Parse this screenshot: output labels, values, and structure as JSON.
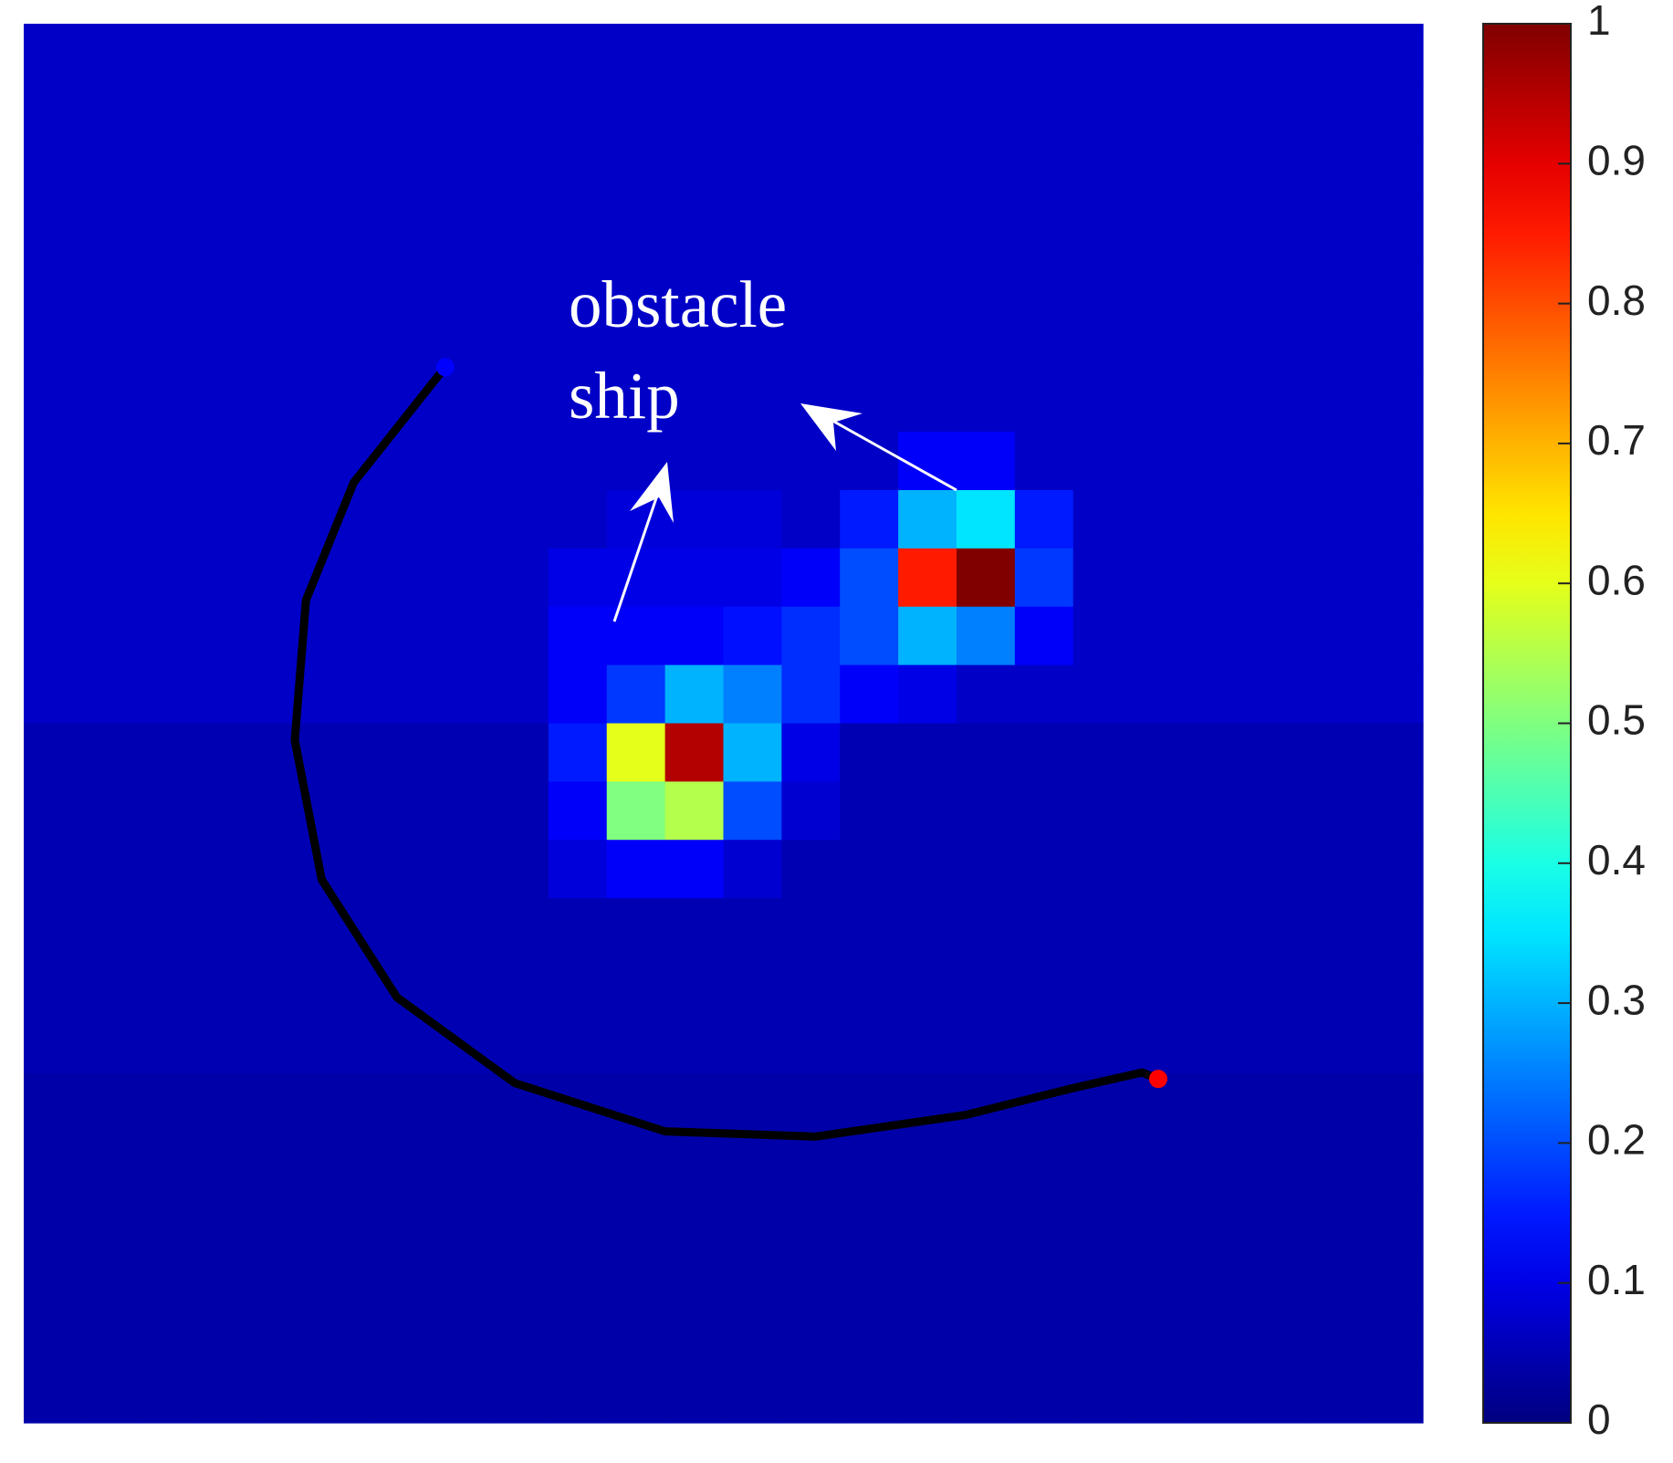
{
  "chart_data": {
    "type": "heatmap",
    "colormap": "jet",
    "clim": [
      0,
      1
    ],
    "cticks": [
      0,
      0.1,
      0.2,
      0.3,
      0.4,
      0.5,
      0.6,
      0.7,
      0.8,
      0.9,
      1
    ],
    "annotation": [
      "obstacle",
      "ship"
    ],
    "z": [
      [
        0.07,
        0.07,
        0.07,
        0.07,
        0.07,
        0.07,
        0.07,
        0.07,
        0.07,
        0.07,
        0.07,
        0.07,
        0.07,
        0.07,
        0.07,
        0.07,
        0.07,
        0.07,
        0.07,
        0.07,
        0.07,
        0.07,
        0.07,
        0.07
      ],
      [
        0.07,
        0.07,
        0.07,
        0.07,
        0.07,
        0.07,
        0.07,
        0.07,
        0.07,
        0.07,
        0.07,
        0.07,
        0.07,
        0.07,
        0.07,
        0.07,
        0.07,
        0.07,
        0.07,
        0.07,
        0.07,
        0.07,
        0.07,
        0.07
      ],
      [
        0.07,
        0.07,
        0.07,
        0.07,
        0.07,
        0.07,
        0.07,
        0.07,
        0.07,
        0.07,
        0.07,
        0.07,
        0.07,
        0.07,
        0.07,
        0.07,
        0.07,
        0.07,
        0.07,
        0.07,
        0.07,
        0.07,
        0.07,
        0.07
      ],
      [
        0.07,
        0.07,
        0.07,
        0.07,
        0.07,
        0.07,
        0.07,
        0.07,
        0.07,
        0.07,
        0.07,
        0.07,
        0.07,
        0.07,
        0.07,
        0.07,
        0.07,
        0.07,
        0.07,
        0.07,
        0.07,
        0.07,
        0.07,
        0.07
      ],
      [
        0.07,
        0.07,
        0.07,
        0.07,
        0.07,
        0.07,
        0.07,
        0.07,
        0.07,
        0.07,
        0.07,
        0.07,
        0.07,
        0.07,
        0.07,
        0.07,
        0.07,
        0.07,
        0.07,
        0.07,
        0.07,
        0.07,
        0.07,
        0.07
      ],
      [
        0.07,
        0.07,
        0.07,
        0.07,
        0.07,
        0.07,
        0.07,
        0.07,
        0.07,
        0.07,
        0.07,
        0.07,
        0.07,
        0.07,
        0.07,
        0.07,
        0.07,
        0.07,
        0.07,
        0.07,
        0.07,
        0.07,
        0.07,
        0.07
      ],
      [
        0.07,
        0.07,
        0.07,
        0.07,
        0.07,
        0.07,
        0.07,
        0.07,
        0.07,
        0.07,
        0.07,
        0.07,
        0.07,
        0.07,
        0.07,
        0.07,
        0.07,
        0.07,
        0.07,
        0.07,
        0.07,
        0.07,
        0.07,
        0.07
      ],
      [
        0.07,
        0.07,
        0.07,
        0.07,
        0.07,
        0.07,
        0.07,
        0.07,
        0.07,
        0.07,
        0.07,
        0.07,
        0.07,
        0.07,
        0.07,
        0.12,
        0.12,
        0.07,
        0.07,
        0.07,
        0.07,
        0.07,
        0.07,
        0.07
      ],
      [
        0.07,
        0.07,
        0.07,
        0.07,
        0.07,
        0.07,
        0.07,
        0.07,
        0.07,
        0.07,
        0.09,
        0.09,
        0.09,
        0.07,
        0.15,
        0.3,
        0.35,
        0.15,
        0.07,
        0.07,
        0.07,
        0.07,
        0.07,
        0.07
      ],
      [
        0.07,
        0.07,
        0.07,
        0.07,
        0.07,
        0.07,
        0.07,
        0.07,
        0.07,
        0.1,
        0.1,
        0.1,
        0.1,
        0.12,
        0.2,
        0.85,
        1,
        0.18,
        0.07,
        0.07,
        0.07,
        0.07,
        0.07,
        0.07
      ],
      [
        0.07,
        0.07,
        0.07,
        0.07,
        0.07,
        0.07,
        0.07,
        0.07,
        0.07,
        0.12,
        0.12,
        0.12,
        0.14,
        0.17,
        0.2,
        0.3,
        0.25,
        0.12,
        0.07,
        0.07,
        0.07,
        0.07,
        0.07,
        0.07
      ],
      [
        0.07,
        0.07,
        0.07,
        0.07,
        0.07,
        0.07,
        0.07,
        0.07,
        0.07,
        0.12,
        0.18,
        0.3,
        0.25,
        0.17,
        0.12,
        0.1,
        0.07,
        0.07,
        0.07,
        0.07,
        0.07,
        0.07,
        0.07,
        0.07
      ],
      [
        0.05,
        0.05,
        0.05,
        0.05,
        0.05,
        0.05,
        0.05,
        0.05,
        0.05,
        0.15,
        0.6,
        0.95,
        0.3,
        0.1,
        0.05,
        0.05,
        0.05,
        0.05,
        0.05,
        0.05,
        0.05,
        0.05,
        0.05,
        0.05
      ],
      [
        0.05,
        0.05,
        0.05,
        0.05,
        0.05,
        0.05,
        0.05,
        0.05,
        0.05,
        0.12,
        0.5,
        0.55,
        0.2,
        0.08,
        0.05,
        0.05,
        0.05,
        0.05,
        0.05,
        0.05,
        0.05,
        0.05,
        0.05,
        0.05
      ],
      [
        0.05,
        0.05,
        0.05,
        0.05,
        0.05,
        0.05,
        0.05,
        0.05,
        0.05,
        0.09,
        0.12,
        0.12,
        0.08,
        0.05,
        0.05,
        0.05,
        0.05,
        0.05,
        0.05,
        0.05,
        0.05,
        0.05,
        0.05,
        0.05
      ],
      [
        0.05,
        0.05,
        0.05,
        0.05,
        0.05,
        0.05,
        0.05,
        0.05,
        0.05,
        0.05,
        0.05,
        0.05,
        0.05,
        0.05,
        0.05,
        0.05,
        0.05,
        0.05,
        0.05,
        0.05,
        0.05,
        0.05,
        0.05,
        0.05
      ],
      [
        0.05,
        0.05,
        0.05,
        0.05,
        0.05,
        0.05,
        0.05,
        0.05,
        0.05,
        0.05,
        0.05,
        0.05,
        0.05,
        0.05,
        0.05,
        0.05,
        0.05,
        0.05,
        0.05,
        0.05,
        0.05,
        0.05,
        0.05,
        0.05
      ],
      [
        0.05,
        0.05,
        0.05,
        0.05,
        0.05,
        0.05,
        0.05,
        0.05,
        0.05,
        0.05,
        0.05,
        0.05,
        0.05,
        0.05,
        0.05,
        0.05,
        0.05,
        0.05,
        0.05,
        0.05,
        0.05,
        0.05,
        0.05,
        0.05
      ],
      [
        0.04,
        0.04,
        0.04,
        0.04,
        0.04,
        0.04,
        0.04,
        0.04,
        0.04,
        0.04,
        0.04,
        0.04,
        0.04,
        0.04,
        0.04,
        0.04,
        0.04,
        0.04,
        0.04,
        0.04,
        0.04,
        0.04,
        0.04,
        0.04
      ],
      [
        0.04,
        0.04,
        0.04,
        0.04,
        0.04,
        0.04,
        0.04,
        0.04,
        0.04,
        0.04,
        0.04,
        0.04,
        0.04,
        0.04,
        0.04,
        0.04,
        0.04,
        0.04,
        0.04,
        0.04,
        0.04,
        0.04,
        0.04,
        0.04
      ],
      [
        0.04,
        0.04,
        0.04,
        0.04,
        0.04,
        0.04,
        0.04,
        0.04,
        0.04,
        0.04,
        0.04,
        0.04,
        0.04,
        0.04,
        0.04,
        0.04,
        0.04,
        0.04,
        0.04,
        0.04,
        0.04,
        0.04,
        0.04,
        0.04
      ],
      [
        0.04,
        0.04,
        0.04,
        0.04,
        0.04,
        0.04,
        0.04,
        0.04,
        0.04,
        0.04,
        0.04,
        0.04,
        0.04,
        0.04,
        0.04,
        0.04,
        0.04,
        0.04,
        0.04,
        0.04,
        0.04,
        0.04,
        0.04,
        0.04
      ],
      [
        0.04,
        0.04,
        0.04,
        0.04,
        0.04,
        0.04,
        0.04,
        0.04,
        0.04,
        0.04,
        0.04,
        0.04,
        0.04,
        0.04,
        0.04,
        0.04,
        0.04,
        0.04,
        0.04,
        0.04,
        0.04,
        0.04,
        0.04,
        0.04
      ],
      [
        0.04,
        0.04,
        0.04,
        0.04,
        0.04,
        0.04,
        0.04,
        0.04,
        0.04,
        0.04,
        0.04,
        0.04,
        0.04,
        0.04,
        0.04,
        0.04,
        0.04,
        0.04,
        0.04,
        0.04,
        0.04,
        0.04,
        0.04,
        0.04
      ]
    ],
    "path": {
      "color": "#000000",
      "start_color": "#0000ff",
      "end_color": "#ff0000",
      "x": [
        7.23,
        5.66,
        4.84,
        4.65,
        5.11,
        6.4,
        8.42,
        11.0,
        13.57,
        16.15,
        17.99,
        19.18,
        19.46
      ],
      "y": [
        5.89,
        7.87,
        9.89,
        12.29,
        14.68,
        16.7,
        18.17,
        19.0,
        19.09,
        18.72,
        18.26,
        17.99,
        18.1
      ]
    }
  }
}
